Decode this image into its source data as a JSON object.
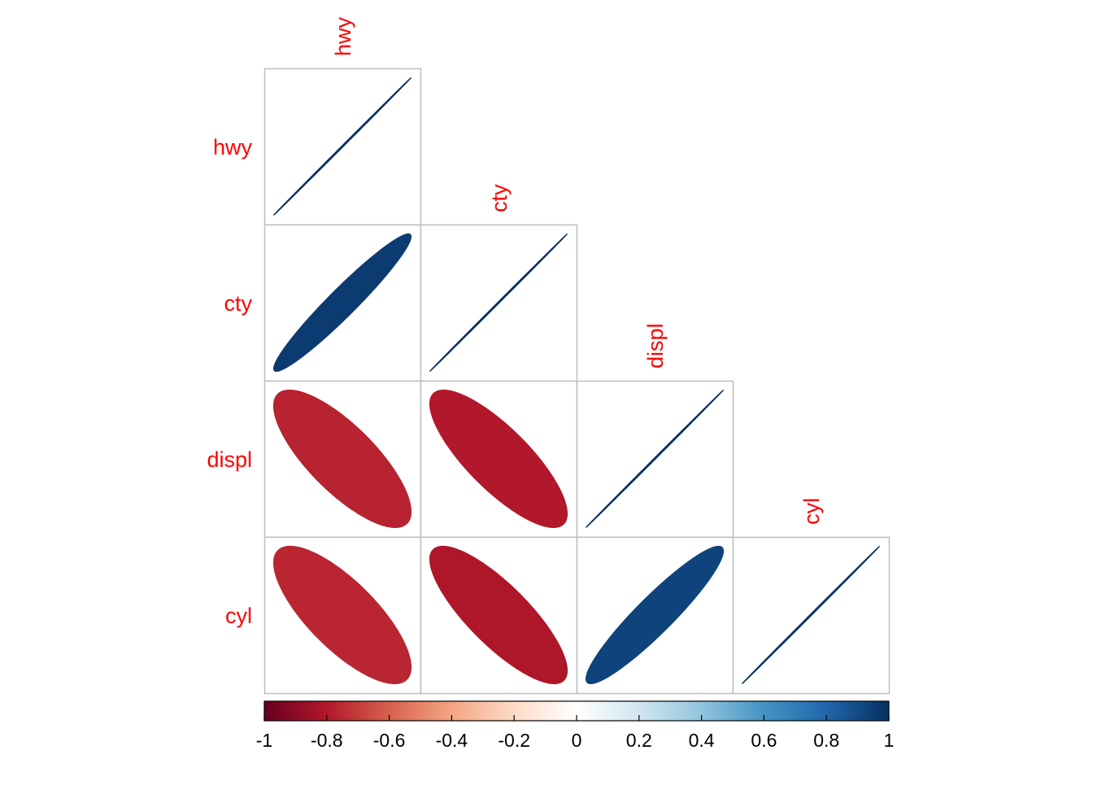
{
  "chart_data": {
    "type": "heatmap",
    "subtype": "correlation-matrix-ellipse-lower",
    "title": "",
    "variables": [
      "hwy",
      "cty",
      "displ",
      "cyl"
    ],
    "matrix": [
      [
        1.0,
        0.96,
        -0.77,
        -0.76
      ],
      [
        0.96,
        1.0,
        -0.8,
        -0.81
      ],
      [
        -0.77,
        -0.8,
        1.0,
        0.93
      ],
      [
        -0.76,
        -0.81,
        0.93,
        1.0
      ]
    ],
    "label_color": "#FF0000",
    "grid": true,
    "grid_color": "#BEBEBE",
    "colorbar": {
      "position": "bottom",
      "range": [
        -1,
        1
      ],
      "ticks": [
        "-1",
        "-0.8",
        "-0.6",
        "-0.4",
        "-0.2",
        "0",
        "0.2",
        "0.4",
        "0.6",
        "0.8",
        "1"
      ],
      "colors": [
        "#67001F",
        "#B2182B",
        "#D6604D",
        "#F4A582",
        "#FDDBC7",
        "#FFFFFF",
        "#D1E5F0",
        "#92C5DE",
        "#4393C3",
        "#2166AC",
        "#053061"
      ]
    }
  }
}
